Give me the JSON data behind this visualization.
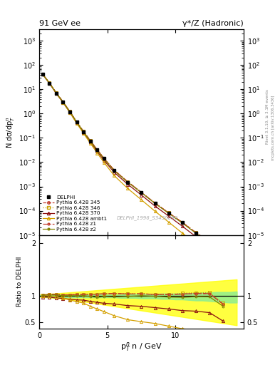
{
  "title_left": "91 GeV ee",
  "title_right": "γ*/Z (Hadronic)",
  "ylabel_main": "N dσ/dp$_T^n$",
  "ylabel_ratio": "Ratio to DELPHI",
  "xlabel": "p$_T^{n}$ n / GeV",
  "watermark": "DELPHI_1996_S3430090",
  "right_label1": "Rivet 3.1.10, ≥ 3.1M events",
  "right_label2": "mcplots.cern.ch [arXiv:1306.3436]",
  "data_x": [
    0.25,
    0.75,
    1.25,
    1.75,
    2.25,
    2.75,
    3.25,
    3.75,
    4.25,
    4.75,
    5.5,
    6.5,
    7.5,
    8.5,
    9.5,
    10.5,
    11.5,
    12.5,
    13.5
  ],
  "data_y": [
    42.0,
    18.0,
    7.0,
    3.0,
    1.2,
    0.45,
    0.18,
    0.075,
    0.032,
    0.014,
    0.0045,
    0.0015,
    0.00055,
    0.0002,
    8e-05,
    3.2e-05,
    1.2e-05,
    5e-06,
    2.5e-06
  ],
  "data_yerr": [
    1.5,
    0.6,
    0.25,
    0.1,
    0.04,
    0.015,
    0.006,
    0.0025,
    0.001,
    0.0005,
    0.00015,
    5e-05,
    2e-05,
    7e-06,
    3e-06,
    1.2e-06,
    5e-07,
    2e-07,
    1e-07
  ],
  "mc_x": [
    0.25,
    0.75,
    1.25,
    1.75,
    2.25,
    2.75,
    3.25,
    3.75,
    4.25,
    4.75,
    5.5,
    6.5,
    7.5,
    8.5,
    9.5,
    10.5,
    11.5,
    12.5,
    13.5
  ],
  "mc345_y": [
    42.5,
    18.5,
    7.2,
    3.05,
    1.22,
    0.46,
    0.185,
    0.077,
    0.033,
    0.0145,
    0.0047,
    0.00155,
    0.00057,
    0.000205,
    8.2e-05,
    3.3e-05,
    1.25e-05,
    5.2e-06,
    2.1e-06
  ],
  "mc346_y": [
    42.5,
    18.5,
    7.2,
    3.05,
    1.22,
    0.46,
    0.185,
    0.077,
    0.033,
    0.0145,
    0.0047,
    0.00155,
    0.00057,
    0.000205,
    8.2e-05,
    3.35e-05,
    1.27e-05,
    5.3e-06,
    2.15e-06
  ],
  "mc370_y": [
    41.0,
    17.5,
    6.7,
    2.85,
    1.12,
    0.415,
    0.165,
    0.067,
    0.028,
    0.012,
    0.0038,
    0.00122,
    0.00044,
    0.000155,
    6e-05,
    2.3e-05,
    8.5e-06,
    3.4e-06,
    1.3e-06
  ],
  "mc_ambt1_y": [
    42.0,
    18.0,
    6.9,
    2.88,
    1.1,
    0.4,
    0.155,
    0.06,
    0.024,
    0.0098,
    0.0028,
    0.00082,
    0.00028,
    9.5e-05,
    3.4e-05,
    1.2e-05,
    4.2e-06,
    1.5e-06,
    5.5e-07
  ],
  "mc_z1_y": [
    42.5,
    18.5,
    7.2,
    3.05,
    1.22,
    0.46,
    0.185,
    0.077,
    0.033,
    0.0145,
    0.0047,
    0.00155,
    0.00057,
    0.000205,
    8.2e-05,
    3.3e-05,
    1.25e-05,
    5.2e-06,
    2.1e-06
  ],
  "mc_z2_y": [
    42.3,
    18.3,
    7.1,
    3.0,
    1.2,
    0.45,
    0.18,
    0.074,
    0.031,
    0.0138,
    0.0044,
    0.00148,
    0.00055,
    0.000198,
    7.8e-05,
    3.1e-05,
    1.18e-05,
    4.9e-06,
    2e-06
  ],
  "color_345": "#c0392b",
  "color_346": "#c8a000",
  "color_370": "#8b1010",
  "color_ambt1": "#d4a000",
  "color_z1": "#c0392b",
  "color_z2": "#808000",
  "band_yellow_x": [
    0.0,
    0.5,
    1.0,
    1.5,
    2.0,
    2.5,
    3.0,
    3.5,
    4.0,
    4.5,
    5.0,
    5.5,
    6.0,
    6.5,
    7.0,
    7.5,
    8.0,
    8.5,
    9.0,
    9.5,
    10.0,
    10.5,
    11.0,
    11.5,
    12.0,
    12.5,
    13.0,
    13.5,
    14.0,
    14.5
  ],
  "band_yellow_hi": [
    1.02,
    1.03,
    1.04,
    1.05,
    1.06,
    1.07,
    1.08,
    1.09,
    1.1,
    1.11,
    1.12,
    1.13,
    1.14,
    1.15,
    1.16,
    1.17,
    1.18,
    1.19,
    1.2,
    1.21,
    1.22,
    1.23,
    1.24,
    1.25,
    1.26,
    1.27,
    1.28,
    1.29,
    1.3,
    1.31
  ],
  "band_yellow_lo": [
    0.98,
    0.97,
    0.96,
    0.95,
    0.94,
    0.92,
    0.9,
    0.88,
    0.86,
    0.84,
    0.82,
    0.8,
    0.78,
    0.76,
    0.74,
    0.72,
    0.7,
    0.68,
    0.66,
    0.64,
    0.62,
    0.6,
    0.58,
    0.56,
    0.54,
    0.52,
    0.5,
    0.48,
    0.46,
    0.44
  ],
  "band_green_x": [
    0.0,
    0.5,
    1.0,
    1.5,
    2.0,
    2.5,
    3.0,
    3.5,
    4.0,
    4.5,
    5.0,
    5.5,
    6.0,
    6.5,
    7.0,
    7.5,
    8.0,
    8.5,
    9.0,
    9.5,
    10.0,
    10.5,
    11.0,
    11.5,
    12.0,
    12.5,
    13.0,
    13.5,
    14.0,
    14.5
  ],
  "band_green_hi": [
    1.01,
    1.02,
    1.02,
    1.02,
    1.02,
    1.02,
    1.02,
    1.02,
    1.02,
    1.02,
    1.02,
    1.02,
    1.02,
    1.03,
    1.03,
    1.03,
    1.03,
    1.03,
    1.04,
    1.04,
    1.04,
    1.05,
    1.05,
    1.05,
    1.06,
    1.06,
    1.07,
    1.07,
    1.07,
    1.08
  ],
  "band_green_lo": [
    0.99,
    0.98,
    0.97,
    0.97,
    0.97,
    0.97,
    0.97,
    0.97,
    0.97,
    0.97,
    0.97,
    0.97,
    0.96,
    0.96,
    0.96,
    0.95,
    0.95,
    0.95,
    0.94,
    0.94,
    0.93,
    0.93,
    0.92,
    0.91,
    0.91,
    0.9,
    0.89,
    0.88,
    0.87,
    0.87
  ],
  "ylim_main": [
    1e-05,
    3000
  ],
  "xlim": [
    0,
    15
  ],
  "ratio_ylim": [
    0.38,
    2.15
  ],
  "ratio_yticks": [
    0.5,
    1.0,
    2.0
  ],
  "ratio_yticklabels": [
    "0.5",
    "1",
    "2"
  ]
}
